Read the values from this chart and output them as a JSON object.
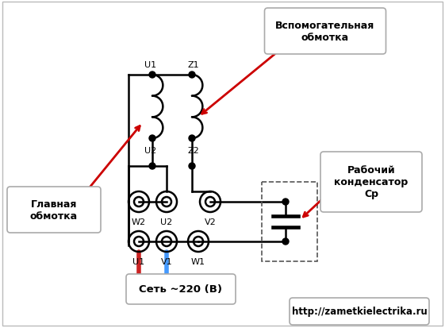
{
  "bg_color": "#ffffff",
  "border_color": "#bbbbbb",
  "line_color": "#000000",
  "line_width": 1.8,
  "arrow_color": "#cc0000",
  "red_wire_color": "#cc2222",
  "blue_wire_color": "#4499ff",
  "box_fill": "#ffffff",
  "box_edge": "#aaaaaa",
  "dashed_box_color": "#555555",
  "bottom_text": "Сеть ~220 (В)",
  "url_text": "http://zametkielectrika.ru",
  "label_glavnaya": "Главная\nобмотка",
  "label_vspom": "Вспомогательная\nобмотка",
  "label_cond": "Рабочий\nконденсатор\nСр"
}
